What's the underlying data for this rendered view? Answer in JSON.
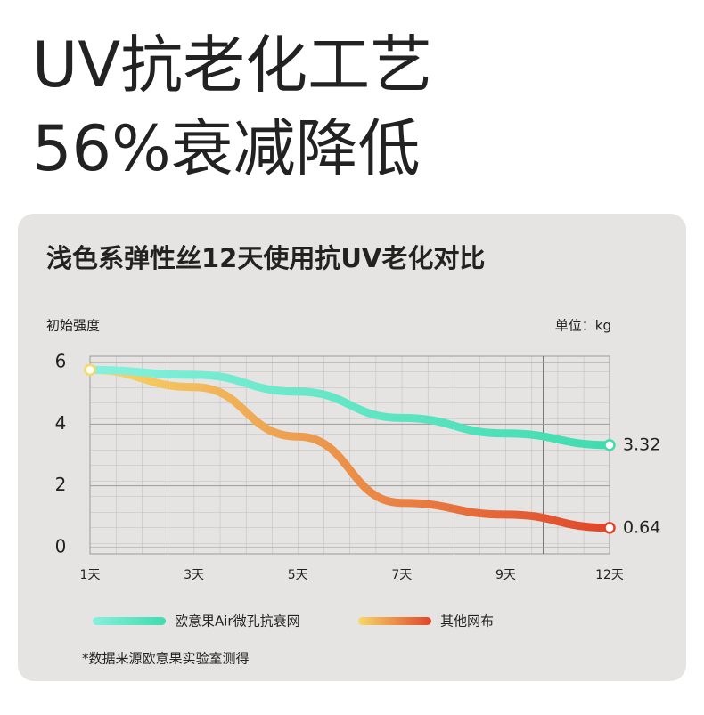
{
  "header": {
    "line1": "UV抗老化工艺",
    "line2": "56%衰减降低"
  },
  "chart_data": {
    "type": "line",
    "title": "浅色系弹性丝12天使用抗UV老化对比",
    "y_label": "初始强度",
    "unit": "单位：kg",
    "categories": [
      "1天",
      "3天",
      "5天",
      "7天",
      "9天",
      "12天"
    ],
    "series": [
      {
        "name": "欧意果Air微孔抗衰网",
        "colors": [
          "#86f0dc",
          "#3fdcae"
        ],
        "values": [
          5.76,
          5.6,
          5.05,
          4.2,
          3.7,
          3.32
        ],
        "value_labels": [
          null,
          null,
          null,
          null,
          null,
          "3.32"
        ]
      },
      {
        "name": "其他网布",
        "colors": [
          "#f6d968",
          "#e0452a"
        ],
        "values": [
          5.76,
          5.2,
          3.6,
          1.45,
          1.07,
          0.64
        ],
        "value_labels": [
          null,
          null,
          null,
          null,
          null,
          "0.64"
        ]
      }
    ],
    "ylim": [
      0,
      6
    ],
    "yticks": [
      0,
      2,
      4,
      6
    ],
    "grid": true,
    "note": "*数据来源欧意果实验室测得"
  }
}
